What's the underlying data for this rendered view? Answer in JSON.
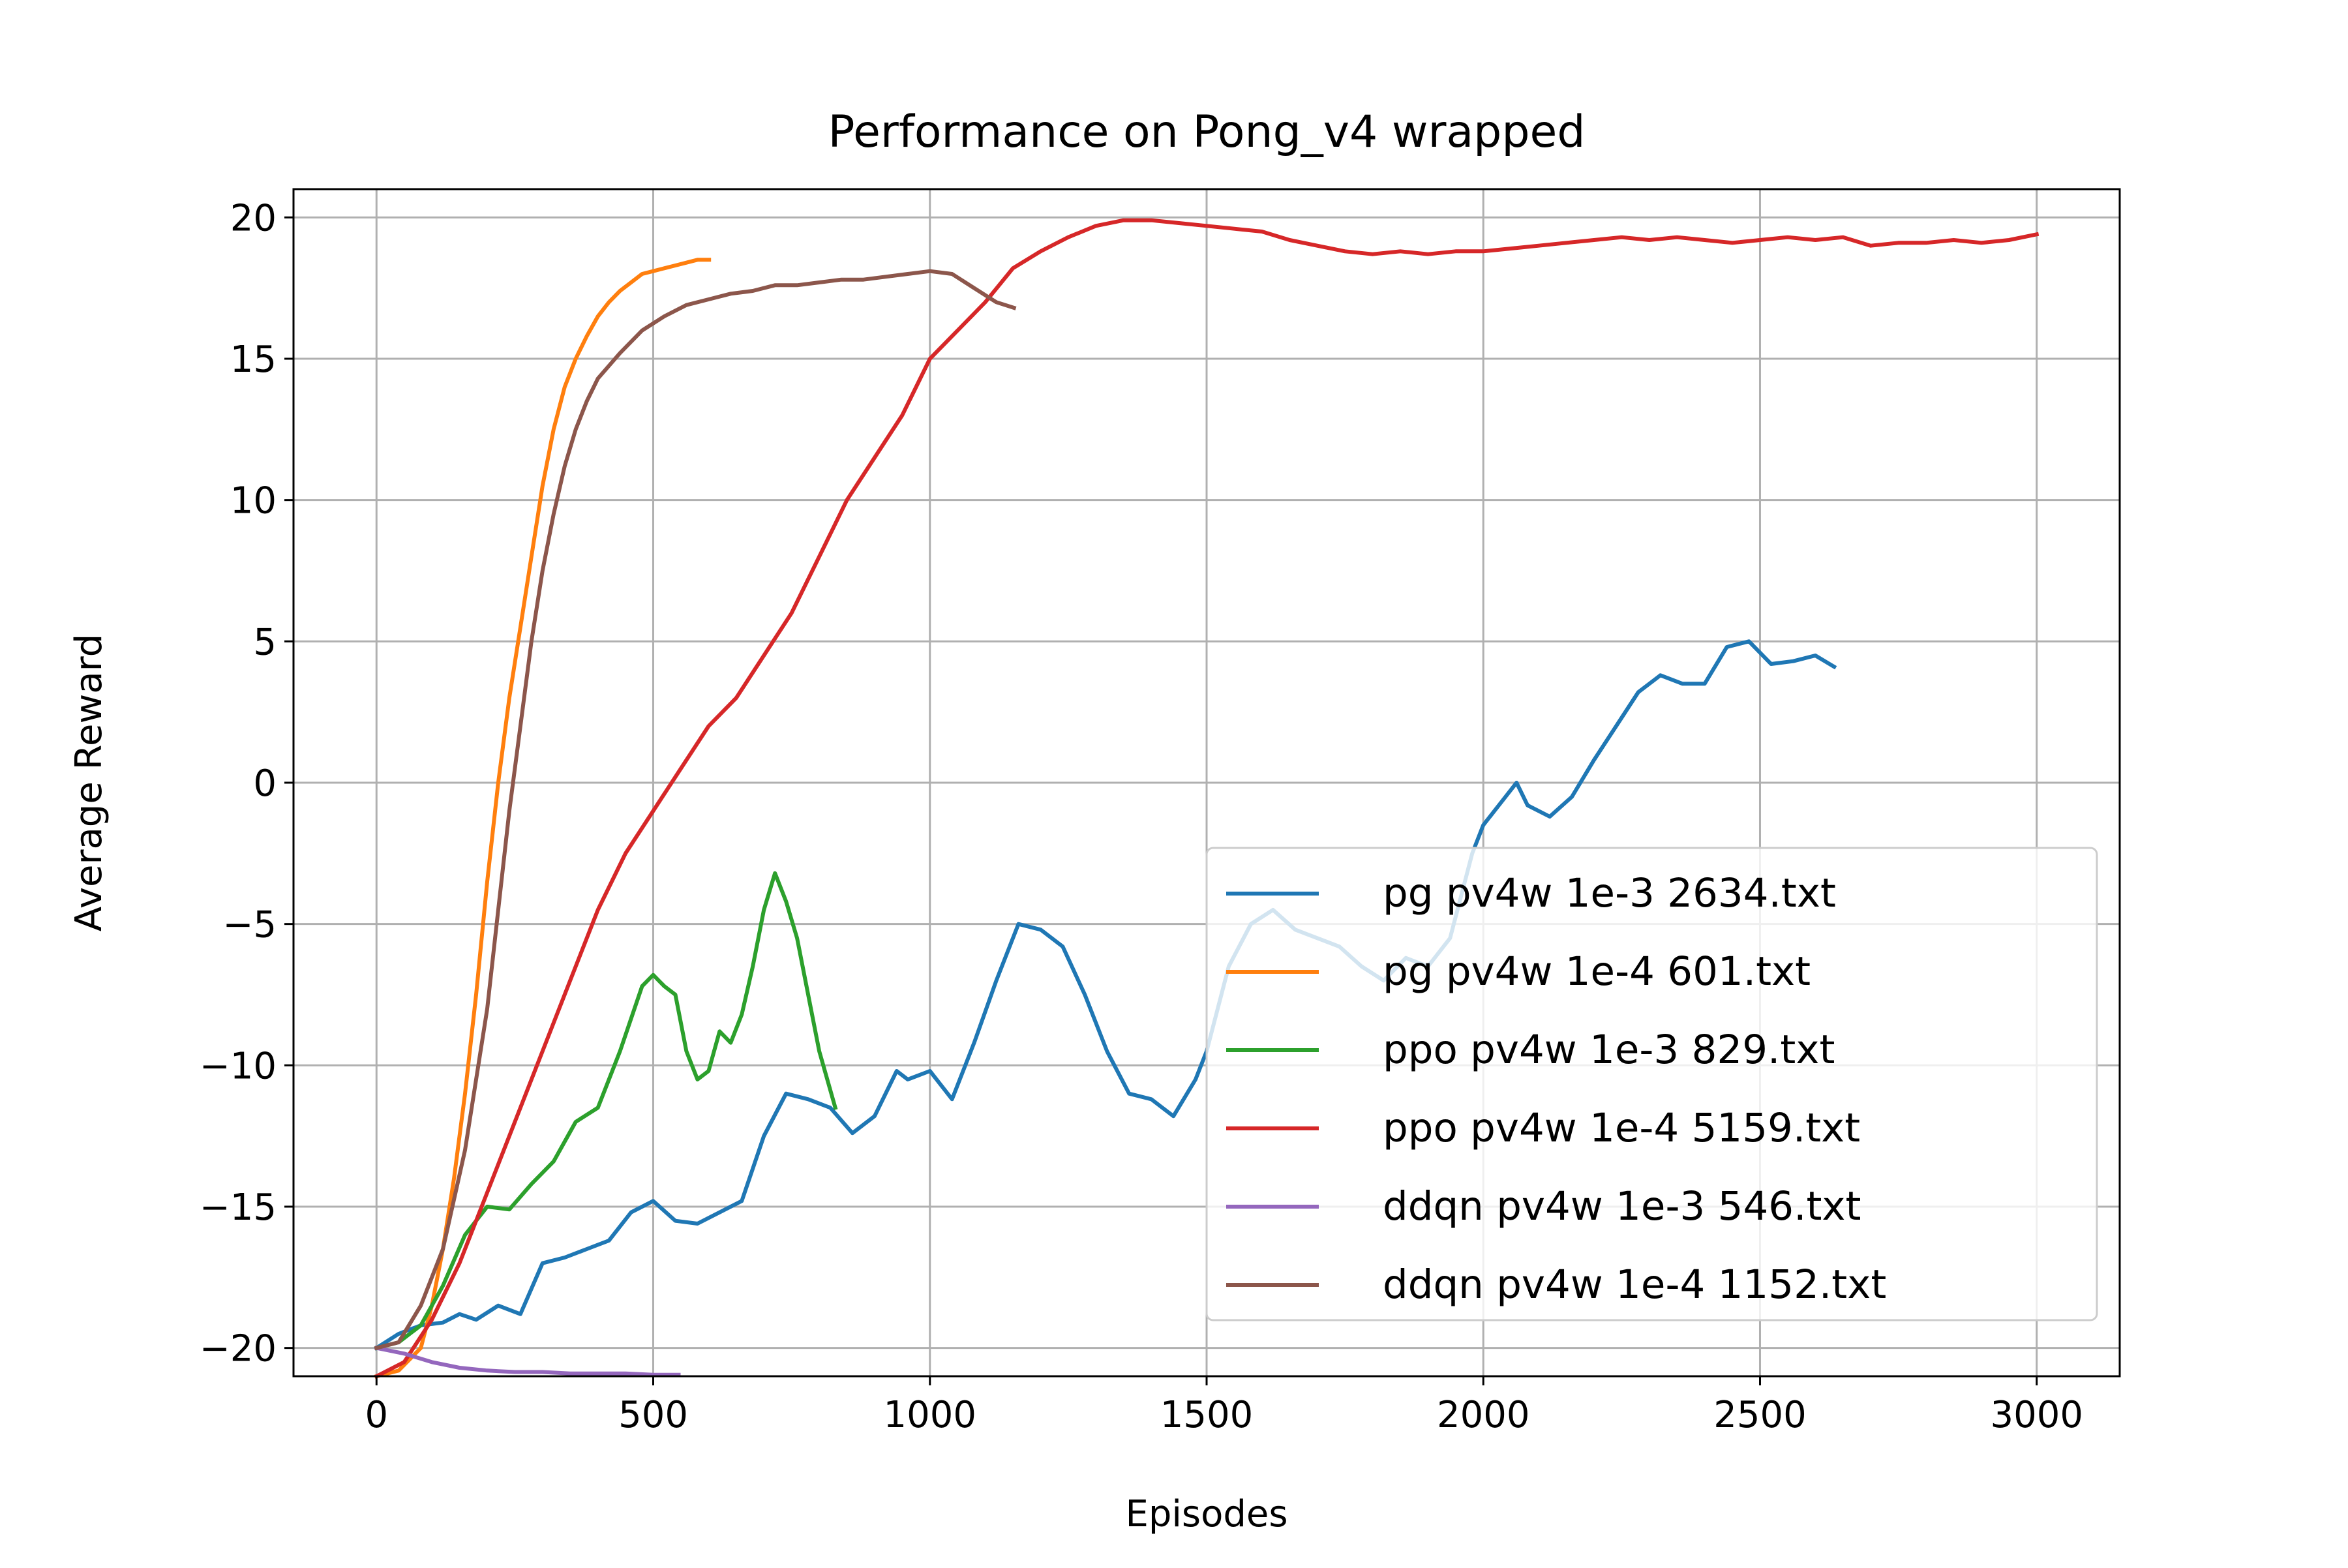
{
  "chart_data": {
    "type": "line",
    "title": "Performance on Pong_v4 wrapped",
    "xlabel": "Episodes",
    "ylabel": "Average Reward",
    "xlim": [
      -150,
      3150
    ],
    "ylim": [
      -21,
      21
    ],
    "xticks": [
      0,
      500,
      1000,
      1500,
      2000,
      2500,
      3000
    ],
    "xtick_labels": [
      "0",
      "500",
      "1000",
      "1500",
      "2000",
      "2500",
      "3000"
    ],
    "yticks": [
      -20,
      -15,
      -10,
      -5,
      0,
      5,
      10,
      15,
      20
    ],
    "ytick_labels": [
      "−20",
      "−15",
      "−10",
      "−5",
      "0",
      "5",
      "10",
      "15",
      "20"
    ],
    "grid": true,
    "legend_position": "lower right",
    "series": [
      {
        "name": "pg pv4w 1e-3 2634.txt",
        "color": "#1f77b4",
        "x": [
          0,
          40,
          80,
          120,
          150,
          180,
          220,
          260,
          300,
          340,
          380,
          420,
          460,
          500,
          540,
          580,
          620,
          660,
          700,
          740,
          780,
          820,
          860,
          900,
          940,
          960,
          1000,
          1040,
          1080,
          1120,
          1160,
          1200,
          1240,
          1280,
          1320,
          1360,
          1400,
          1440,
          1480,
          1500,
          1540,
          1580,
          1620,
          1660,
          1700,
          1740,
          1780,
          1820,
          1860,
          1900,
          1940,
          1980,
          2000,
          2040,
          2060,
          2080,
          2120,
          2160,
          2200,
          2240,
          2280,
          2320,
          2360,
          2400,
          2440,
          2480,
          2520,
          2560,
          2600,
          2634
        ],
        "y": [
          -20,
          -19.5,
          -19.2,
          -19.1,
          -18.8,
          -19,
          -18.5,
          -18.8,
          -17,
          -16.8,
          -16.5,
          -16.2,
          -15.2,
          -14.8,
          -15.5,
          -15.6,
          -15.2,
          -14.8,
          -12.5,
          -11,
          -11.2,
          -11.5,
          -12.4,
          -11.8,
          -10.2,
          -10.5,
          -10.2,
          -11.2,
          -9.2,
          -7,
          -5,
          -5.2,
          -5.8,
          -7.5,
          -9.5,
          -11,
          -11.2,
          -11.8,
          -10.5,
          -9.5,
          -6.5,
          -5,
          -4.5,
          -5.2,
          -5.5,
          -5.8,
          -6.5,
          -7,
          -6.2,
          -6.5,
          -5.5,
          -2.5,
          -1.5,
          -0.5,
          0,
          -0.8,
          -1.2,
          -0.5,
          0.8,
          2,
          3.2,
          3.8,
          3.5,
          3.5,
          4.8,
          5,
          4.2,
          4.3,
          4.5,
          4.1
        ]
      },
      {
        "name": "pg pv4w 1e-4 601.txt",
        "color": "#ff7f0e",
        "x": [
          0,
          40,
          80,
          100,
          120,
          140,
          160,
          180,
          200,
          220,
          240,
          260,
          280,
          300,
          320,
          340,
          360,
          380,
          400,
          420,
          440,
          460,
          480,
          500,
          520,
          540,
          560,
          580,
          601
        ],
        "y": [
          -21,
          -20.8,
          -20,
          -18.5,
          -16.5,
          -14,
          -11,
          -7.5,
          -3.5,
          0,
          3,
          5.5,
          8,
          10.5,
          12.5,
          14,
          15,
          15.8,
          16.5,
          17,
          17.4,
          17.7,
          18,
          18.1,
          18.2,
          18.3,
          18.4,
          18.5,
          18.5
        ]
      },
      {
        "name": "ppo pv4w 1e-3 829.txt",
        "color": "#2ca02c",
        "x": [
          0,
          40,
          80,
          120,
          160,
          200,
          240,
          280,
          320,
          360,
          400,
          440,
          480,
          500,
          520,
          540,
          560,
          580,
          600,
          620,
          640,
          660,
          680,
          700,
          720,
          740,
          760,
          780,
          800,
          829
        ],
        "y": [
          -20,
          -19.8,
          -19.2,
          -17.8,
          -16,
          -15,
          -15.1,
          -14.2,
          -13.4,
          -12,
          -11.5,
          -9.5,
          -7.2,
          -6.8,
          -7.2,
          -7.5,
          -9.5,
          -10.5,
          -10.2,
          -8.8,
          -9.2,
          -8.2,
          -6.5,
          -4.5,
          -3.2,
          -4.2,
          -5.5,
          -7.5,
          -9.5,
          -11.5
        ]
      },
      {
        "name": "ppo pv4w 1e-4 5159.txt",
        "color": "#d62728",
        "x": [
          0,
          50,
          100,
          150,
          200,
          250,
          300,
          350,
          400,
          450,
          500,
          550,
          600,
          650,
          700,
          750,
          800,
          850,
          900,
          950,
          1000,
          1050,
          1100,
          1150,
          1200,
          1250,
          1300,
          1350,
          1400,
          1450,
          1500,
          1550,
          1600,
          1650,
          1700,
          1750,
          1800,
          1850,
          1900,
          1950,
          2000,
          2050,
          2100,
          2150,
          2200,
          2250,
          2300,
          2350,
          2400,
          2450,
          2500,
          2550,
          2600,
          2650,
          2700,
          2750,
          2800,
          2850,
          2900,
          2950,
          3000
        ],
        "y": [
          -21,
          -20.5,
          -19,
          -17,
          -14.5,
          -12,
          -9.5,
          -7,
          -4.5,
          -2.5,
          -1,
          0.5,
          2,
          3,
          4.5,
          6,
          8,
          10,
          11.5,
          13,
          15,
          16,
          17,
          18.2,
          18.8,
          19.3,
          19.7,
          19.9,
          19.9,
          19.8,
          19.7,
          19.6,
          19.5,
          19.2,
          19,
          18.8,
          18.7,
          18.8,
          18.7,
          18.8,
          18.8,
          18.9,
          19,
          19.1,
          19.2,
          19.3,
          19.2,
          19.3,
          19.2,
          19.1,
          19.2,
          19.3,
          19.2,
          19.3,
          19,
          19.1,
          19.1,
          19.2,
          19.1,
          19.2,
          19.4
        ]
      },
      {
        "name": "ddqn pv4w 1e-3 546.txt",
        "color": "#9467bd",
        "x": [
          0,
          50,
          100,
          150,
          200,
          250,
          300,
          350,
          400,
          450,
          500,
          546
        ],
        "y": [
          -20,
          -20.2,
          -20.5,
          -20.7,
          -20.8,
          -20.85,
          -20.85,
          -20.9,
          -20.9,
          -20.9,
          -20.95,
          -20.95
        ]
      },
      {
        "name": "ddqn pv4w 1e-4 1152.txt",
        "color": "#8c564b",
        "x": [
          0,
          40,
          80,
          120,
          160,
          200,
          220,
          240,
          260,
          280,
          300,
          320,
          340,
          360,
          380,
          400,
          440,
          480,
          520,
          560,
          600,
          640,
          680,
          720,
          760,
          800,
          840,
          880,
          920,
          960,
          1000,
          1040,
          1080,
          1120,
          1152
        ],
        "y": [
          -20,
          -19.8,
          -18.5,
          -16.5,
          -13,
          -8,
          -4.5,
          -1,
          2,
          5,
          7.5,
          9.5,
          11.2,
          12.5,
          13.5,
          14.3,
          15.2,
          16,
          16.5,
          16.9,
          17.1,
          17.3,
          17.4,
          17.6,
          17.6,
          17.7,
          17.8,
          17.8,
          17.9,
          18,
          18.1,
          18,
          17.5,
          17,
          16.8
        ]
      }
    ]
  }
}
